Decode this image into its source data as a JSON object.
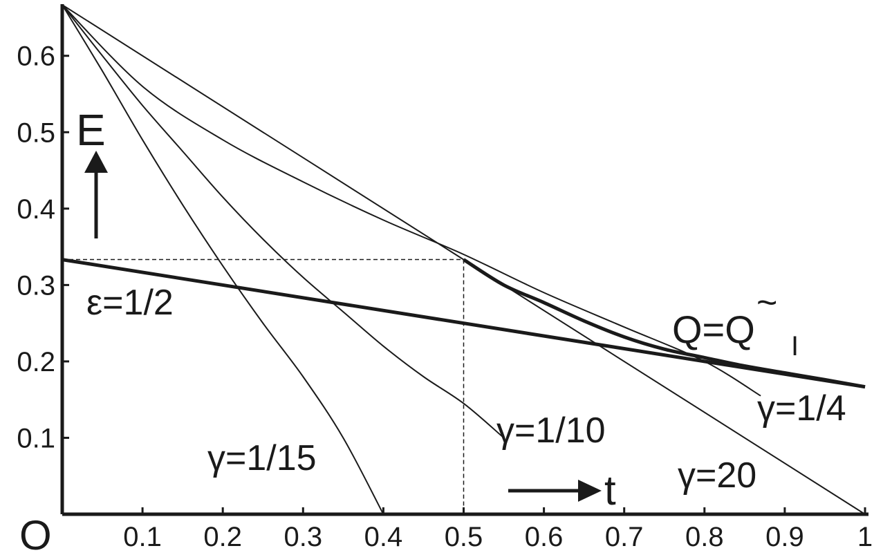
{
  "chart_data": {
    "type": "line",
    "xlim": [
      0,
      1
    ],
    "ylim": [
      0,
      0.6667
    ],
    "x_ticks": [
      "0.1",
      "0.2",
      "0.3",
      "0.4",
      "0.5",
      "0.6",
      "0.7",
      "0.8",
      "0.9",
      "1"
    ],
    "y_ticks": [
      "0.1",
      "0.2",
      "0.3",
      "0.4",
      "0.5",
      "0.6"
    ],
    "origin_label": "O",
    "x_axis_label": "t",
    "y_axis_label": "E",
    "grid": false,
    "series": [
      {
        "name": "γ=20",
        "style": "thin",
        "x": [
          0,
          0.5,
          1
        ],
        "y": [
          0.6667,
          0.3333,
          0
        ]
      },
      {
        "name": "γ=1/4",
        "style": "thin",
        "x": [
          0,
          0.1,
          0.2,
          0.3,
          0.4,
          0.5,
          0.6,
          0.7,
          0.8,
          0.87
        ],
        "y": [
          0.6667,
          0.56,
          0.49,
          0.435,
          0.385,
          0.34,
          0.29,
          0.245,
          0.2,
          0.155
        ]
      },
      {
        "name": "γ=1/10",
        "style": "thin",
        "x": [
          0,
          0.05,
          0.1,
          0.15,
          0.2,
          0.25,
          0.3,
          0.35,
          0.4,
          0.45,
          0.5,
          0.55
        ],
        "y": [
          0.6667,
          0.6,
          0.535,
          0.475,
          0.415,
          0.36,
          0.31,
          0.265,
          0.22,
          0.18,
          0.145,
          0.1
        ]
      },
      {
        "name": "γ=1/15",
        "style": "thin",
        "x": [
          0,
          0.05,
          0.1,
          0.15,
          0.2,
          0.25,
          0.3,
          0.35,
          0.4
        ],
        "y": [
          0.6667,
          0.58,
          0.49,
          0.405,
          0.325,
          0.25,
          0.18,
          0.1,
          0
        ]
      },
      {
        "name": "ε=1/2",
        "style": "bold",
        "x": [
          0,
          1
        ],
        "y": [
          0.3333,
          0.1667
        ]
      },
      {
        "name": "Q=Q̃I",
        "style": "bold",
        "x": [
          0.5,
          0.55,
          0.6,
          0.65,
          0.7,
          0.75,
          0.8,
          0.85,
          0.9,
          0.95,
          1
        ],
        "y": [
          0.3333,
          0.3,
          0.277,
          0.253,
          0.232,
          0.216,
          0.205,
          0.194,
          0.185,
          0.176,
          0.1667
        ]
      }
    ],
    "guide_lines": [
      {
        "from": [
          0,
          0.3333
        ],
        "to": [
          0.5,
          0.3333
        ]
      },
      {
        "from": [
          0.5,
          0.3333
        ],
        "to": [
          0.5,
          0
        ]
      }
    ],
    "annotations": {
      "gamma_20": "γ=20",
      "gamma_1_4": "γ=1/4",
      "gamma_1_10": "γ=1/10",
      "gamma_1_15": "γ=1/15",
      "epsilon": "ε=1/2",
      "q_main": "Q=Q",
      "q_sub": "I",
      "q_tilde": "~"
    }
  }
}
